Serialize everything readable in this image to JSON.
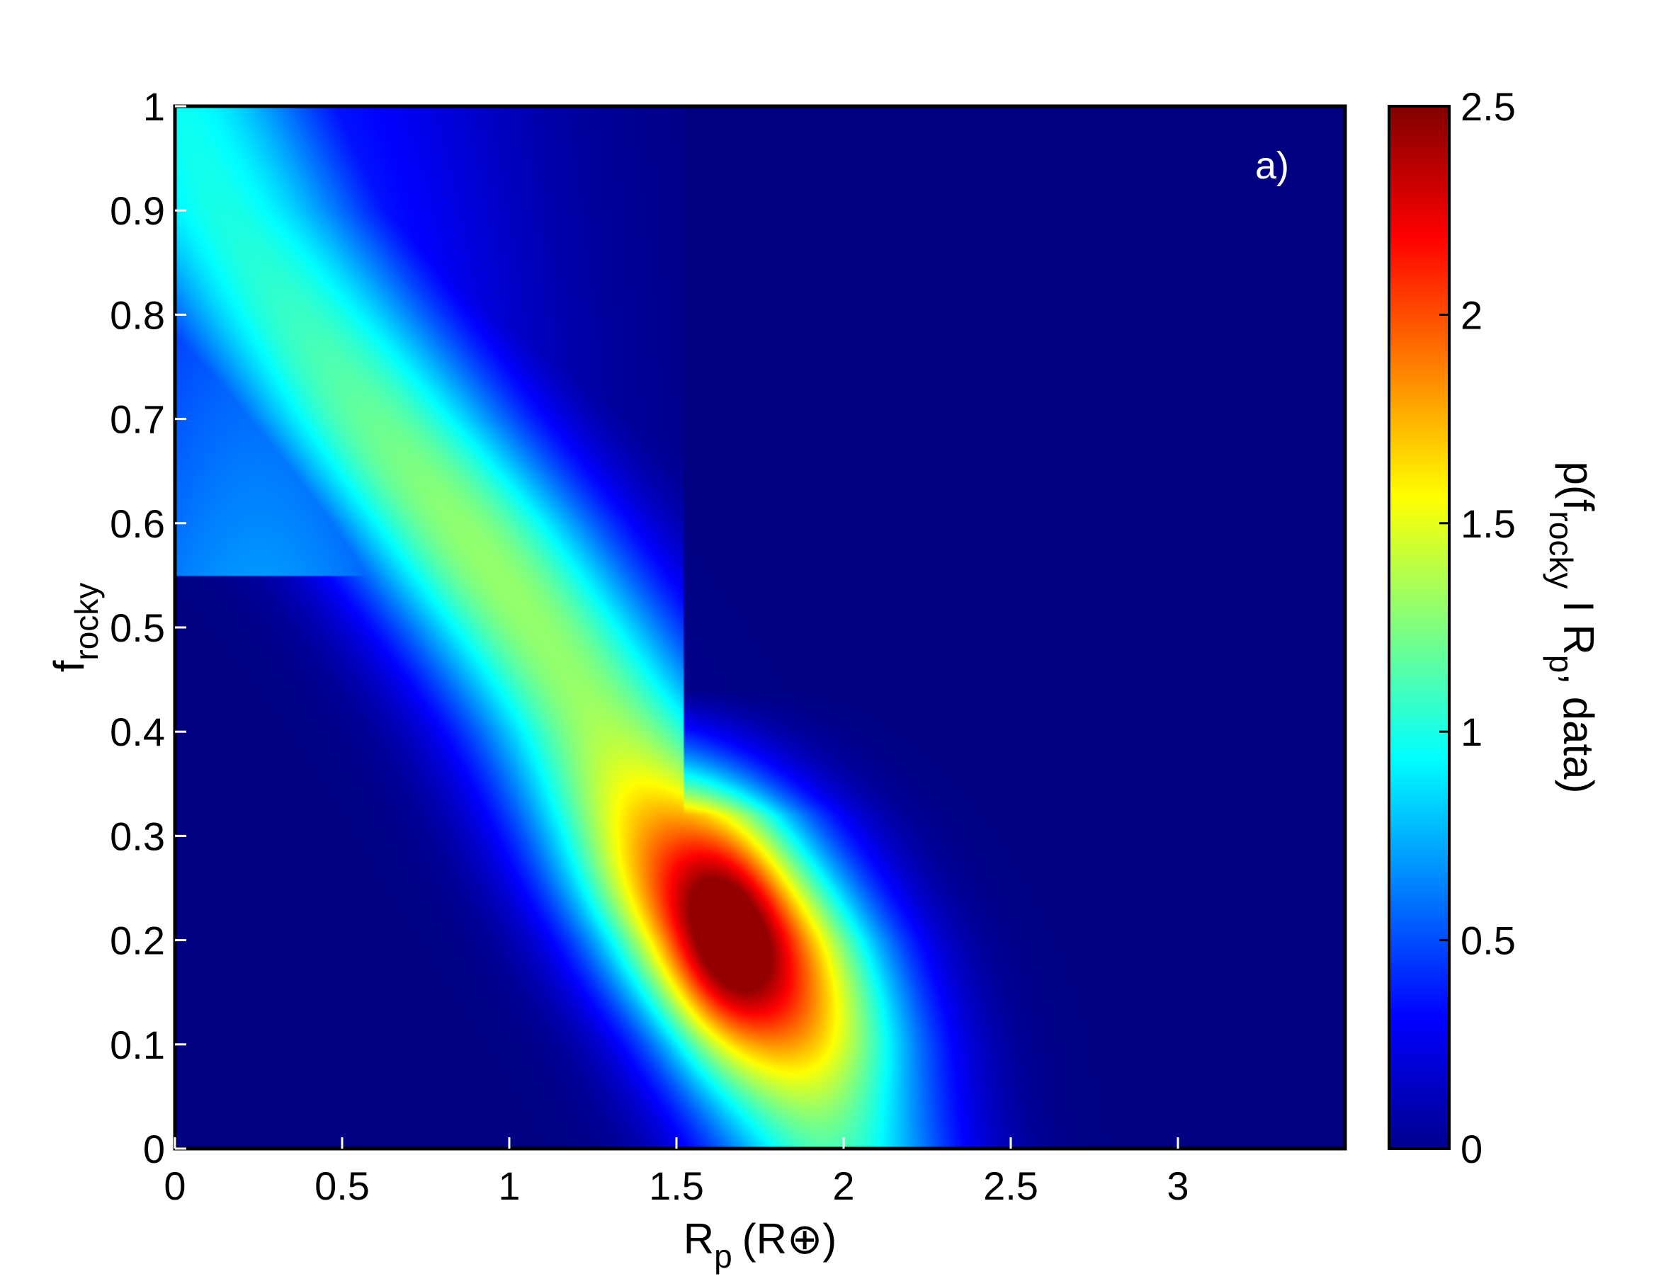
{
  "chart_data": {
    "type": "heatmap",
    "title": "",
    "panel_label": "a)",
    "xlabel": {
      "main": "R",
      "sub": "p",
      "unit": "(R⊕)"
    },
    "ylabel": {
      "main": "f",
      "sub": "rocky"
    },
    "colorbar_label": {
      "p1": "p(f",
      "sub1": "rocky",
      "p2": " I R",
      "sub2": "p",
      "p3": ", data)"
    },
    "xlim": [
      0,
      3.5
    ],
    "ylim": [
      0,
      1
    ],
    "x_ticks": [
      0,
      0.5,
      1,
      1.5,
      2,
      2.5,
      3
    ],
    "x_tick_labels": [
      "0",
      "0.5",
      "1",
      "1.5",
      "2",
      "2.5",
      "3"
    ],
    "y_ticks": [
      0,
      0.1,
      0.2,
      0.3,
      0.4,
      0.5,
      0.6,
      0.7,
      0.8,
      0.9,
      1
    ],
    "y_tick_labels": [
      "0",
      "0.1",
      "0.2",
      "0.3",
      "0.4",
      "0.5",
      "0.6",
      "0.7",
      "0.8",
      "0.9",
      "1"
    ],
    "colorbar_range": [
      0,
      2.5
    ],
    "colorbar_ticks": [
      0,
      0.5,
      1,
      1.5,
      2,
      2.5
    ],
    "colorbar_tick_labels": [
      "0",
      "0.5",
      "1",
      "1.5",
      "2",
      "2.5"
    ],
    "colormap": "jet",
    "ridge_centerline": [
      {
        "f_rocky": 0.0,
        "Rp": 1.95
      },
      {
        "f_rocky": 0.1,
        "Rp": 1.83
      },
      {
        "f_rocky": 0.2,
        "Rp": 1.68
      },
      {
        "f_rocky": 0.3,
        "Rp": 1.5
      },
      {
        "f_rocky": 0.4,
        "Rp": 1.3
      },
      {
        "f_rocky": 0.5,
        "Rp": 1.08
      },
      {
        "f_rocky": 0.6,
        "Rp": 0.85
      },
      {
        "f_rocky": 0.7,
        "Rp": 0.6
      },
      {
        "f_rocky": 0.8,
        "Rp": 0.37
      },
      {
        "f_rocky": 0.9,
        "Rp": 0.15
      },
      {
        "f_rocky": 1.0,
        "Rp": 0.0
      }
    ],
    "peak": {
      "Rp": 1.65,
      "f_rocky": 0.2,
      "value": 2.45
    },
    "data_cutoff_Rp": 1.52
  }
}
